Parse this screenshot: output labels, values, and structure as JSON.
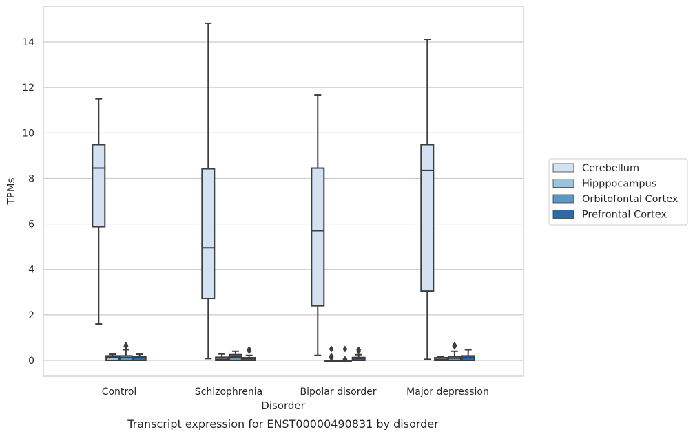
{
  "chart_data": {
    "type": "box",
    "title": "",
    "caption": "Transcript expression for ENST00000490831 by disorder",
    "xlabel": "Disorder",
    "ylabel": "TPMs",
    "ylim": [
      -0.7,
      15.5
    ],
    "yticks": [
      0,
      2,
      4,
      6,
      8,
      10,
      12,
      14
    ],
    "grid": "horizontal",
    "legend_position": "right",
    "categories": [
      "Control",
      "Schizophrenia",
      "Bipolar disorder",
      "Major depression"
    ],
    "series": [
      {
        "name": "Cerebellum",
        "color": "#d2e2f2",
        "boxes": [
          {
            "min": 1.6,
            "q1": 5.88,
            "median": 8.45,
            "q3": 9.48,
            "max": 11.5,
            "outliers": []
          },
          {
            "min": 0.08,
            "q1": 2.72,
            "median": 4.95,
            "q3": 8.42,
            "max": 14.82,
            "outliers": []
          },
          {
            "min": 0.22,
            "q1": 2.4,
            "median": 5.7,
            "q3": 8.45,
            "max": 11.67,
            "outliers": []
          },
          {
            "min": 0.05,
            "q1": 3.05,
            "median": 8.35,
            "q3": 9.48,
            "max": 14.12,
            "outliers": []
          }
        ]
      },
      {
        "name": "Hipppocampus",
        "color": "#9cc3dd",
        "boxes": [
          {
            "min": 0.0,
            "q1": 0.0,
            "median": 0.15,
            "q3": 0.2,
            "max": 0.27,
            "outliers": []
          },
          {
            "min": 0.0,
            "q1": 0.0,
            "median": 0.05,
            "q3": 0.14,
            "max": 0.28,
            "outliers": []
          },
          {
            "min": 0.0,
            "q1": 0.0,
            "median": 0.0,
            "q3": 0.0,
            "max": 0.0,
            "outliers": [
              0.12,
              0.18,
              0.5
            ]
          },
          {
            "min": 0.0,
            "q1": 0.0,
            "median": 0.05,
            "q3": 0.12,
            "max": 0.18,
            "outliers": []
          }
        ]
      },
      {
        "name": "Orbitofontal Cortex",
        "color": "#5d98c4",
        "boxes": [
          {
            "min": 0.0,
            "q1": 0.0,
            "median": 0.12,
            "q3": 0.2,
            "max": 0.47,
            "outliers": [
              0.62,
              0.67
            ]
          },
          {
            "min": 0.0,
            "q1": 0.0,
            "median": 0.15,
            "q3": 0.25,
            "max": 0.4,
            "outliers": []
          },
          {
            "min": 0.0,
            "q1": 0.0,
            "median": 0.0,
            "q3": 0.0,
            "max": 0.0,
            "outliers": [
              0.05,
              0.5
            ]
          },
          {
            "min": 0.0,
            "q1": 0.0,
            "median": 0.1,
            "q3": 0.17,
            "max": 0.4,
            "outliers": [
              0.62,
              0.67
            ]
          }
        ]
      },
      {
        "name": "Prefrontal Cortex",
        "color": "#2d6aa8",
        "boxes": [
          {
            "min": 0.0,
            "q1": 0.0,
            "median": 0.12,
            "q3": 0.17,
            "max": 0.27,
            "outliers": []
          },
          {
            "min": 0.0,
            "q1": 0.0,
            "median": 0.07,
            "q3": 0.12,
            "max": 0.22,
            "outliers": [
              0.42,
              0.48
            ]
          },
          {
            "min": 0.0,
            "q1": 0.0,
            "median": 0.08,
            "q3": 0.13,
            "max": 0.25,
            "outliers": [
              0.4,
              0.47
            ]
          },
          {
            "min": 0.0,
            "q1": 0.0,
            "median": 0.12,
            "q3": 0.2,
            "max": 0.47,
            "outliers": []
          }
        ]
      }
    ]
  }
}
